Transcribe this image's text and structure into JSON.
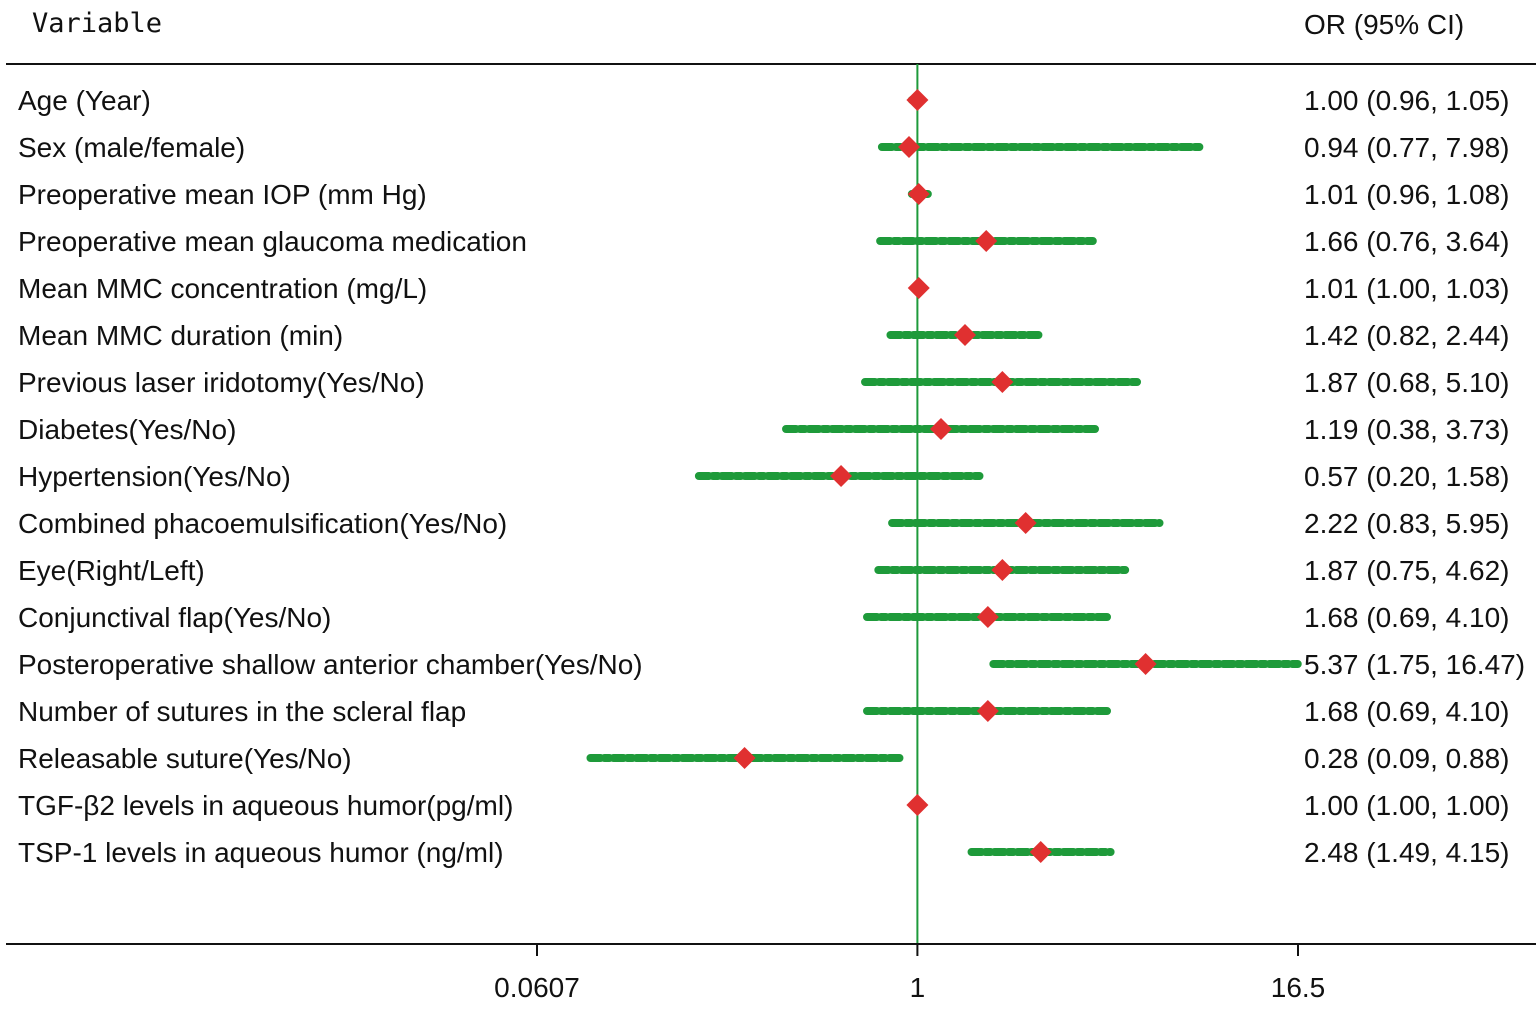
{
  "header": {
    "variable_label": "Variable",
    "or_label": "OR (95% CI)"
  },
  "chart_data": {
    "type": "forest",
    "x_scale": "log",
    "reference_value": 1,
    "xlim": [
      0.0607,
      16.5
    ],
    "xticks": [
      {
        "value": 0.0607,
        "label": "0.0607"
      },
      {
        "value": 1,
        "label": "1"
      },
      {
        "value": 16.5,
        "label": "16.5"
      }
    ],
    "colors": {
      "ci": "#1e9a3a",
      "point": "#e03030",
      "reference_line": "#1e9a3a",
      "axis": "#111111"
    },
    "rows": [
      {
        "variable": "Age (Year)",
        "or": 1.0,
        "lo": 0.96,
        "hi": 1.05,
        "text": "1.00 (0.96, 1.05)"
      },
      {
        "variable": "Sex (male/female)",
        "or": 0.94,
        "lo": 0.77,
        "hi": 7.98,
        "text": "0.94 (0.77, 7.98)"
      },
      {
        "variable": "Preoperative mean IOP (mm Hg)",
        "or": 1.01,
        "lo": 0.96,
        "hi": 1.08,
        "text": "1.01 (0.96, 1.08)"
      },
      {
        "variable": "Preoperative mean glaucoma medication",
        "or": 1.66,
        "lo": 0.76,
        "hi": 3.64,
        "text": "1.66 (0.76, 3.64)"
      },
      {
        "variable": "Mean MMC concentration (mg/L)",
        "or": 1.01,
        "lo": 1.0,
        "hi": 1.03,
        "text": "1.01 (1.00, 1.03)"
      },
      {
        "variable": "Mean MMC duration (min)",
        "or": 1.42,
        "lo": 0.82,
        "hi": 2.44,
        "text": "1.42 (0.82, 2.44)"
      },
      {
        "variable": "Previous laser iridotomy(Yes/No)",
        "or": 1.87,
        "lo": 0.68,
        "hi": 5.1,
        "text": "1.87 (0.68, 5.10)"
      },
      {
        "variable": "Diabetes(Yes/No)",
        "or": 1.19,
        "lo": 0.38,
        "hi": 3.73,
        "text": "1.19 (0.38, 3.73)"
      },
      {
        "variable": "Hypertension(Yes/No)",
        "or": 0.57,
        "lo": 0.2,
        "hi": 1.58,
        "text": "0.57 (0.20, 1.58)"
      },
      {
        "variable": "Combined phacoemulsification(Yes/No)",
        "or": 2.22,
        "lo": 0.83,
        "hi": 5.95,
        "text": "2.22 (0.83, 5.95)"
      },
      {
        "variable": "Eye(Right/Left)",
        "or": 1.87,
        "lo": 0.75,
        "hi": 4.62,
        "text": "1.87 (0.75, 4.62)"
      },
      {
        "variable": "Conjunctival flap(Yes/No)",
        "or": 1.68,
        "lo": 0.69,
        "hi": 4.1,
        "text": "1.68 (0.69, 4.10)"
      },
      {
        "variable": "Posteroperative shallow anterior chamber(Yes/No)",
        "or": 5.37,
        "lo": 1.75,
        "hi": 16.47,
        "text": "5.37 (1.75, 16.47)"
      },
      {
        "variable": "Number of sutures in the scleral flap",
        "or": 1.68,
        "lo": 0.69,
        "hi": 4.1,
        "text": "1.68 (0.69, 4.10)"
      },
      {
        "variable": "Releasable suture(Yes/No)",
        "or": 0.28,
        "lo": 0.09,
        "hi": 0.88,
        "text": "0.28 (0.09, 0.88)"
      },
      {
        "variable": "TGF-β2 levels in aqueous humor(pg/ml)",
        "or": 1.0,
        "lo": 1.0,
        "hi": 1.0,
        "text": "1.00 (1.00, 1.00)"
      },
      {
        "variable": "TSP-1 levels in aqueous humor (ng/ml)",
        "or": 2.48,
        "lo": 1.49,
        "hi": 4.15,
        "text": "2.48 (1.49, 4.15)"
      }
    ]
  }
}
